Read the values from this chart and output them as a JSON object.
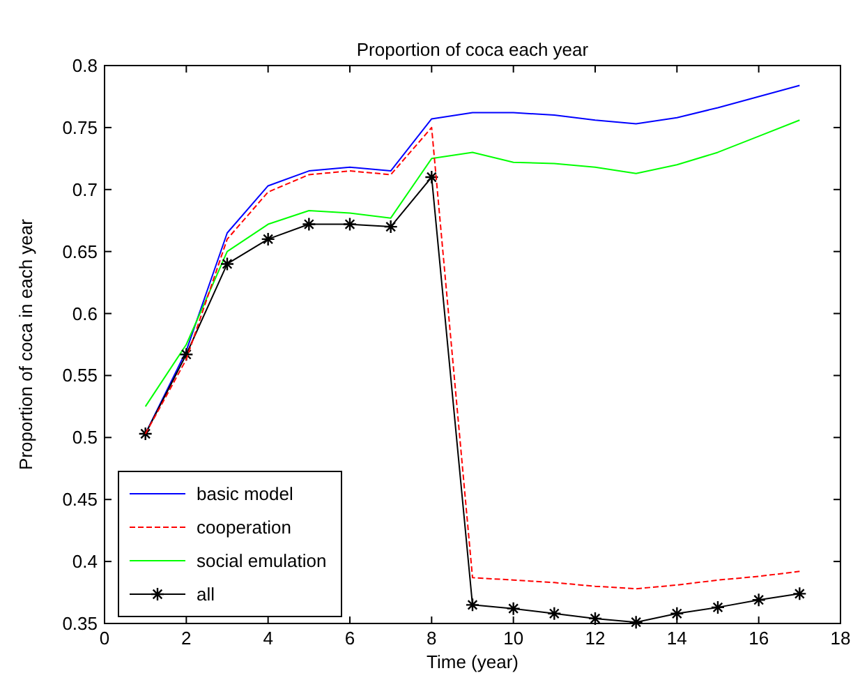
{
  "chart_data": {
    "type": "line",
    "title": "Proportion of coca each year",
    "xlabel": "Time (year)",
    "ylabel": "Proportion of coca in each year",
    "x": [
      1,
      2,
      3,
      4,
      5,
      6,
      7,
      8,
      9,
      10,
      11,
      12,
      13,
      14,
      15,
      16,
      17
    ],
    "xlim": [
      0,
      18
    ],
    "xticks": [
      0,
      2,
      4,
      6,
      8,
      10,
      12,
      14,
      16,
      18
    ],
    "ylim": [
      0.35,
      0.8
    ],
    "yticks": [
      0.35,
      0.4,
      0.45,
      0.5,
      0.55,
      0.6,
      0.65,
      0.7,
      0.75,
      0.8
    ],
    "grid": false,
    "legend": "bottom left",
    "series": [
      {
        "name": "basic model",
        "color": "#0000ff",
        "line_style": "solid",
        "marker": "none",
        "values": [
          0.503,
          0.57,
          0.665,
          0.703,
          0.715,
          0.718,
          0.715,
          0.757,
          0.762,
          0.762,
          0.76,
          0.756,
          0.753,
          0.758,
          0.766,
          0.775,
          0.784
        ]
      },
      {
        "name": "cooperation",
        "color": "#ff0000",
        "line_style": "dashed",
        "marker": "none",
        "values": [
          0.503,
          0.563,
          0.66,
          0.698,
          0.712,
          0.715,
          0.712,
          0.75,
          0.387,
          0.385,
          0.383,
          0.38,
          0.378,
          0.381,
          0.385,
          0.388,
          0.392
        ]
      },
      {
        "name": "social emulation",
        "color": "#00ff00",
        "line_style": "solid",
        "marker": "none",
        "values": [
          0.525,
          0.575,
          0.65,
          0.672,
          0.683,
          0.681,
          0.677,
          0.725,
          0.73,
          0.722,
          0.721,
          0.718,
          0.713,
          0.72,
          0.73,
          0.743,
          0.756
        ]
      },
      {
        "name": "all",
        "color": "#000000",
        "line_style": "solid",
        "marker": "cross",
        "values": [
          0.503,
          0.567,
          0.64,
          0.66,
          0.672,
          0.672,
          0.67,
          0.71,
          0.365,
          0.362,
          0.358,
          0.354,
          0.351,
          0.358,
          0.363,
          0.369,
          0.374
        ]
      }
    ]
  }
}
